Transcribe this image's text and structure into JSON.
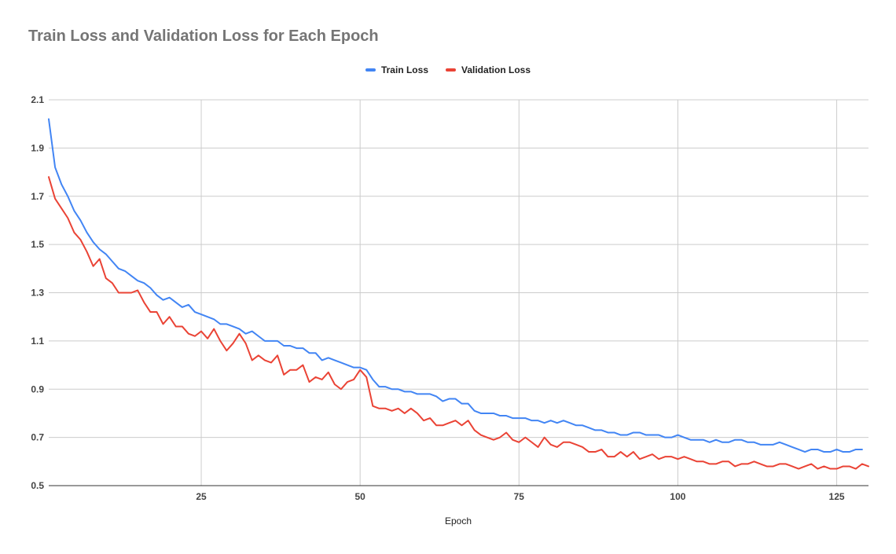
{
  "chart_data": {
    "type": "line",
    "title": "Train Loss and Validation Loss for Each Epoch",
    "xlabel": "Epoch",
    "ylabel": "",
    "xlim": [
      1,
      130
    ],
    "ylim": [
      0.5,
      2.1
    ],
    "x_ticks": [
      25,
      50,
      75,
      100,
      125
    ],
    "y_ticks": [
      0.5,
      0.7,
      0.9,
      1.1,
      1.3,
      1.5,
      1.7,
      1.9,
      2.1
    ],
    "grid": true,
    "legend_position": "top-center",
    "colors": {
      "train": "#4285f4",
      "validation": "#ea4335",
      "grid": "#cccccc"
    },
    "series": [
      {
        "name": "Train Loss",
        "color": "#4285f4",
        "values": [
          2.02,
          1.82,
          1.75,
          1.7,
          1.64,
          1.6,
          1.55,
          1.51,
          1.48,
          1.46,
          1.43,
          1.4,
          1.39,
          1.37,
          1.35,
          1.34,
          1.32,
          1.29,
          1.27,
          1.28,
          1.26,
          1.24,
          1.25,
          1.22,
          1.21,
          1.2,
          1.19,
          1.17,
          1.17,
          1.16,
          1.15,
          1.13,
          1.14,
          1.12,
          1.1,
          1.1,
          1.1,
          1.08,
          1.08,
          1.07,
          1.07,
          1.05,
          1.05,
          1.02,
          1.03,
          1.02,
          1.01,
          1.0,
          0.99,
          0.99,
          0.98,
          0.94,
          0.91,
          0.91,
          0.9,
          0.9,
          0.89,
          0.89,
          0.88,
          0.88,
          0.88,
          0.87,
          0.85,
          0.86,
          0.86,
          0.84,
          0.84,
          0.81,
          0.8,
          0.8,
          0.8,
          0.79,
          0.79,
          0.78,
          0.78,
          0.78,
          0.77,
          0.77,
          0.76,
          0.77,
          0.76,
          0.77,
          0.76,
          0.75,
          0.75,
          0.74,
          0.73,
          0.73,
          0.72,
          0.72,
          0.71,
          0.71,
          0.72,
          0.72,
          0.71,
          0.71,
          0.71,
          0.7,
          0.7,
          0.71,
          0.7,
          0.69,
          0.69,
          0.69,
          0.68,
          0.69,
          0.68,
          0.68,
          0.69,
          0.69,
          0.68,
          0.68,
          0.67,
          0.67,
          0.67,
          0.68,
          0.67,
          0.66,
          0.65,
          0.64,
          0.65,
          0.65,
          0.64,
          0.64,
          0.65,
          0.64,
          0.64,
          0.65,
          0.65
        ]
      },
      {
        "name": "Validation Loss",
        "color": "#ea4335",
        "values": [
          1.78,
          1.69,
          1.65,
          1.61,
          1.55,
          1.52,
          1.47,
          1.41,
          1.44,
          1.36,
          1.34,
          1.3,
          1.3,
          1.3,
          1.31,
          1.26,
          1.22,
          1.22,
          1.17,
          1.2,
          1.16,
          1.16,
          1.13,
          1.12,
          1.14,
          1.11,
          1.15,
          1.1,
          1.06,
          1.09,
          1.13,
          1.09,
          1.02,
          1.04,
          1.02,
          1.01,
          1.04,
          0.96,
          0.98,
          0.98,
          1.0,
          0.93,
          0.95,
          0.94,
          0.97,
          0.92,
          0.9,
          0.93,
          0.94,
          0.98,
          0.95,
          0.83,
          0.82,
          0.82,
          0.81,
          0.82,
          0.8,
          0.82,
          0.8,
          0.77,
          0.78,
          0.75,
          0.75,
          0.76,
          0.77,
          0.75,
          0.77,
          0.73,
          0.71,
          0.7,
          0.69,
          0.7,
          0.72,
          0.69,
          0.68,
          0.7,
          0.68,
          0.66,
          0.7,
          0.67,
          0.66,
          0.68,
          0.68,
          0.67,
          0.66,
          0.64,
          0.64,
          0.65,
          0.62,
          0.62,
          0.64,
          0.62,
          0.64,
          0.61,
          0.62,
          0.63,
          0.61,
          0.62,
          0.62,
          0.61,
          0.62,
          0.61,
          0.6,
          0.6,
          0.59,
          0.59,
          0.6,
          0.6,
          0.58,
          0.59,
          0.59,
          0.6,
          0.59,
          0.58,
          0.58,
          0.59,
          0.59,
          0.58,
          0.57,
          0.58,
          0.59,
          0.57,
          0.58,
          0.57,
          0.57,
          0.58,
          0.58,
          0.57,
          0.59,
          0.58
        ]
      }
    ]
  }
}
